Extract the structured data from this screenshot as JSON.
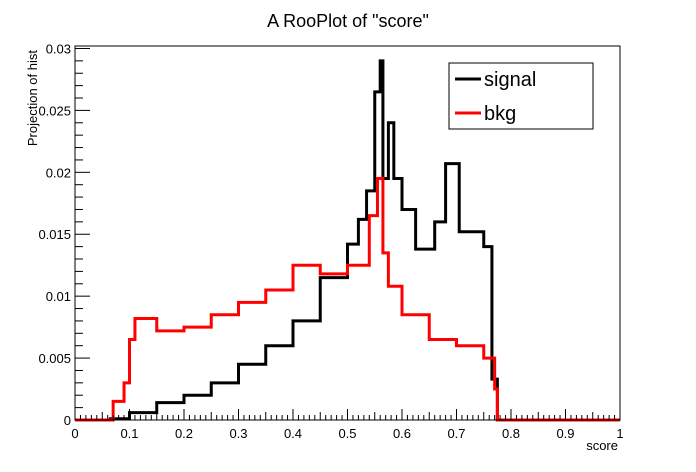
{
  "chart_data": {
    "type": "histogram",
    "title": "A RooPlot of \"score\"",
    "xlabel": "score",
    "ylabel": "Projection of hist",
    "xlim": [
      0,
      1
    ],
    "ylim": [
      0,
      0.0302
    ],
    "bin_width": 0.005,
    "x_ticks": [
      "0",
      "0.1",
      "0.2",
      "0.3",
      "0.4",
      "0.5",
      "0.6",
      "0.7",
      "0.8",
      "0.9",
      "1"
    ],
    "y_ticks": [
      "0",
      "0.005",
      "0.01",
      "0.015",
      "0.02",
      "0.025",
      "0.03"
    ],
    "legend_position": "top-right",
    "series": [
      {
        "name": "signal",
        "color": "#000000",
        "bins": [
          {
            "range": [
              0.0,
              0.065
            ],
            "value": 0.0
          },
          {
            "range": [
              0.065,
              0.1
            ],
            "value": 0.0001
          },
          {
            "range": [
              0.1,
              0.15
            ],
            "value": 0.0006
          },
          {
            "range": [
              0.15,
              0.2
            ],
            "value": 0.0014
          },
          {
            "range": [
              0.2,
              0.25
            ],
            "value": 0.002
          },
          {
            "range": [
              0.25,
              0.3
            ],
            "value": 0.003
          },
          {
            "range": [
              0.3,
              0.35
            ],
            "value": 0.0045
          },
          {
            "range": [
              0.35,
              0.4
            ],
            "value": 0.006
          },
          {
            "range": [
              0.4,
              0.45
            ],
            "value": 0.008
          },
          {
            "range": [
              0.45,
              0.5
            ],
            "value": 0.0115
          },
          {
            "range": [
              0.5,
              0.52
            ],
            "value": 0.0142
          },
          {
            "range": [
              0.52,
              0.535
            ],
            "value": 0.0162
          },
          {
            "range": [
              0.535,
              0.55
            ],
            "value": 0.0185
          },
          {
            "range": [
              0.55,
              0.56
            ],
            "value": 0.0265
          },
          {
            "range": [
              0.56,
              0.565
            ],
            "value": 0.029
          },
          {
            "range": [
              0.565,
              0.575
            ],
            "value": 0.0195
          },
          {
            "range": [
              0.575,
              0.585
            ],
            "value": 0.024
          },
          {
            "range": [
              0.585,
              0.6
            ],
            "value": 0.0195
          },
          {
            "range": [
              0.6,
              0.625
            ],
            "value": 0.017
          },
          {
            "range": [
              0.625,
              0.66
            ],
            "value": 0.0138
          },
          {
            "range": [
              0.66,
              0.68
            ],
            "value": 0.016
          },
          {
            "range": [
              0.68,
              0.705
            ],
            "value": 0.0207
          },
          {
            "range": [
              0.705,
              0.75
            ],
            "value": 0.0152
          },
          {
            "range": [
              0.75,
              0.765
            ],
            "value": 0.014
          },
          {
            "range": [
              0.765,
              0.775
            ],
            "value": 0.0033
          },
          {
            "range": [
              0.775,
              1.0
            ],
            "value": 0.0
          }
        ]
      },
      {
        "name": "bkg",
        "color": "#ff0000",
        "bins": [
          {
            "range": [
              0.0,
              0.07
            ],
            "value": 0.0
          },
          {
            "range": [
              0.07,
              0.09
            ],
            "value": 0.0015
          },
          {
            "range": [
              0.09,
              0.1
            ],
            "value": 0.003
          },
          {
            "range": [
              0.1,
              0.11
            ],
            "value": 0.0065
          },
          {
            "range": [
              0.11,
              0.15
            ],
            "value": 0.0082
          },
          {
            "range": [
              0.15,
              0.2
            ],
            "value": 0.0072
          },
          {
            "range": [
              0.2,
              0.25
            ],
            "value": 0.0075
          },
          {
            "range": [
              0.25,
              0.3
            ],
            "value": 0.0085
          },
          {
            "range": [
              0.3,
              0.35
            ],
            "value": 0.0095
          },
          {
            "range": [
              0.35,
              0.4
            ],
            "value": 0.0105
          },
          {
            "range": [
              0.4,
              0.45
            ],
            "value": 0.0125
          },
          {
            "range": [
              0.45,
              0.5
            ],
            "value": 0.0118
          },
          {
            "range": [
              0.5,
              0.54
            ],
            "value": 0.0125
          },
          {
            "range": [
              0.54,
              0.555
            ],
            "value": 0.0165
          },
          {
            "range": [
              0.555,
              0.565
            ],
            "value": 0.0195
          },
          {
            "range": [
              0.565,
              0.575
            ],
            "value": 0.0135
          },
          {
            "range": [
              0.575,
              0.6
            ],
            "value": 0.0108
          },
          {
            "range": [
              0.6,
              0.65
            ],
            "value": 0.0085
          },
          {
            "range": [
              0.65,
              0.7
            ],
            "value": 0.0065
          },
          {
            "range": [
              0.7,
              0.75
            ],
            "value": 0.006
          },
          {
            "range": [
              0.75,
              0.77
            ],
            "value": 0.005
          },
          {
            "range": [
              0.77,
              0.775
            ],
            "value": 0.0025
          },
          {
            "range": [
              0.775,
              1.0
            ],
            "value": 0.0
          }
        ]
      }
    ]
  }
}
